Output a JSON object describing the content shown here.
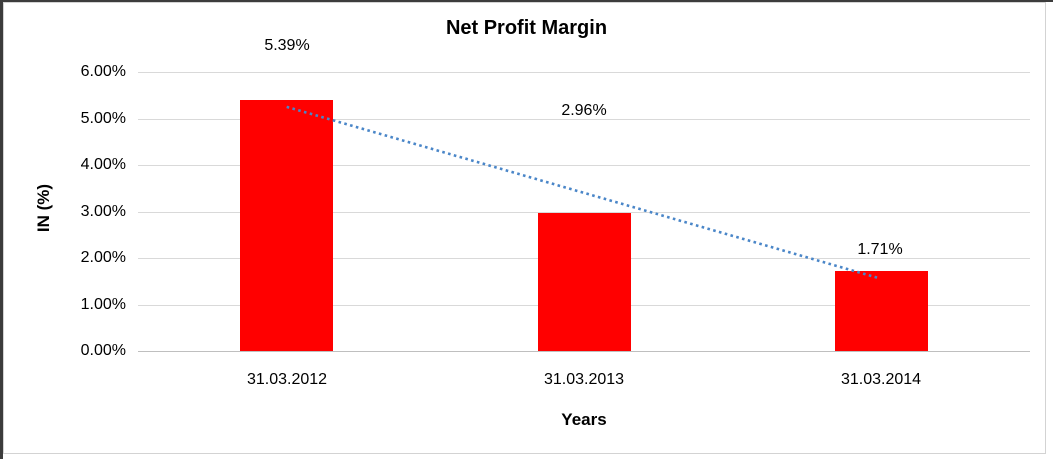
{
  "chart_data": {
    "type": "bar",
    "title": "Net Profit Margin",
    "xlabel": "Years",
    "ylabel": "IN (%)",
    "categories": [
      "31.03.2012",
      "31.03.2013",
      "31.03.2014"
    ],
    "series": [
      {
        "name": "Net Profit Margin",
        "values": [
          5.39,
          2.96,
          1.71
        ]
      }
    ],
    "data_labels": [
      "5.39%",
      "2.96%",
      "1.71%"
    ],
    "ytick_labels": [
      "0.00%",
      "1.00%",
      "2.00%",
      "3.00%",
      "4.00%",
      "5.00%",
      "6.00%"
    ],
    "ylim": [
      0,
      6
    ],
    "grid": true,
    "legend": "none",
    "trendline": {
      "type": "linear",
      "style": "dotted",
      "start_value": 5.25,
      "end_value": 1.57
    },
    "colors": {
      "bar": "#ff0000",
      "gridline": "#d9d9d9",
      "axis_line": "#bfbfbf",
      "trendline": "#4a86c8",
      "text": "#000000",
      "frame": "#d3d3d3",
      "edge": "#3c3c3c",
      "background": "#ffffff"
    }
  }
}
